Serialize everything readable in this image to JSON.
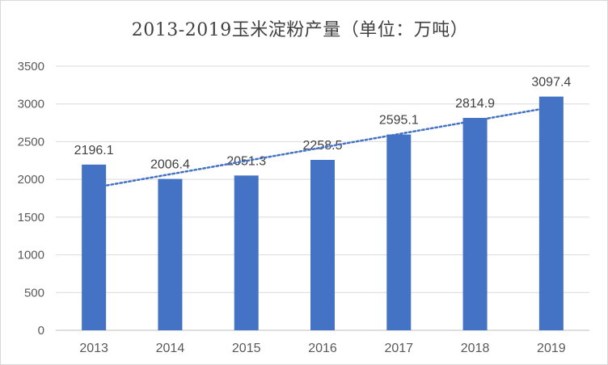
{
  "chart_data": {
    "type": "bar",
    "title": "2013-2019玉米淀粉产量（单位：万吨）",
    "categories": [
      "2013",
      "2014",
      "2015",
      "2016",
      "2017",
      "2018",
      "2019"
    ],
    "values": [
      2196.1,
      2006.4,
      2051.3,
      2258.5,
      2595.1,
      2814.9,
      3097.4
    ],
    "data_labels": [
      "2196.1",
      "2006.4",
      "2051.3",
      "2258.5",
      "2595.1",
      "2814.9",
      "3097.4"
    ],
    "ylim": [
      0,
      3500
    ],
    "yticks": [
      "0",
      "500",
      "1000",
      "1500",
      "2000",
      "2500",
      "3000",
      "3500"
    ],
    "ytick_values": [
      0,
      500,
      1000,
      1500,
      2000,
      2500,
      3000,
      3500
    ],
    "grid": true,
    "trendline": {
      "type": "linear",
      "style": "dotted"
    },
    "colors": {
      "bar": "#4472C4",
      "trendline": "#4472C4",
      "grid": "#d9d9d9",
      "text": "#595959"
    }
  }
}
